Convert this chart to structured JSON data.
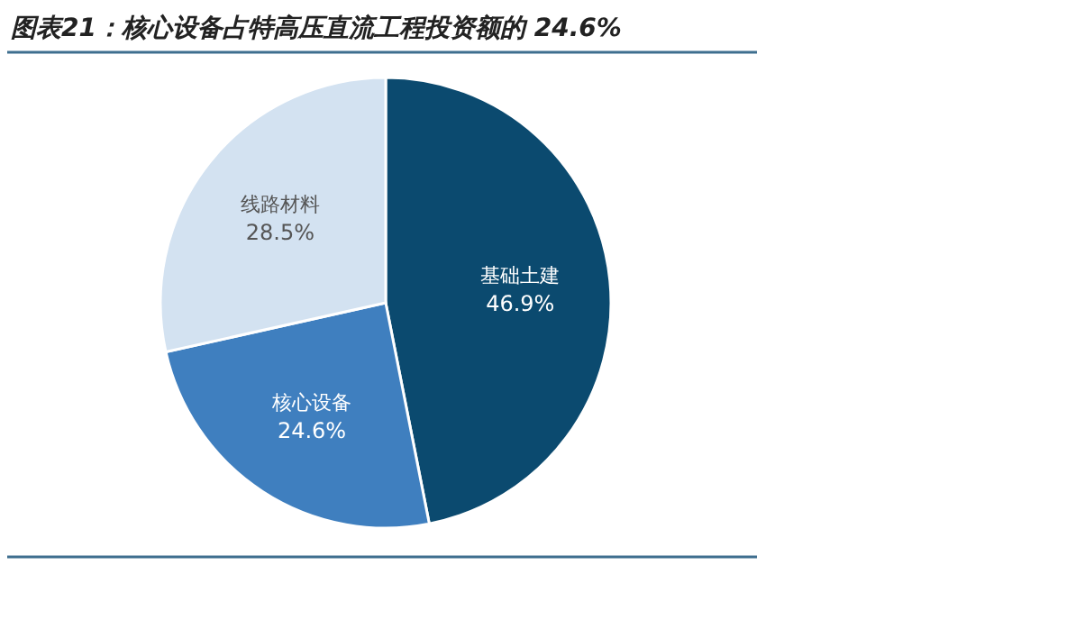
{
  "chart_data": {
    "type": "pie",
    "title": "图表21：核心设备占特高压直流工程投资额的 24.6%",
    "categories": [
      "基础土建",
      "核心设备",
      "线路材料"
    ],
    "values": [
      46.9,
      24.6,
      28.5
    ],
    "value_labels": [
      "46.9%",
      "24.6%",
      "28.5%"
    ],
    "colors": [
      "#0b4a6f",
      "#3f7fbf",
      "#d3e2f1"
    ]
  }
}
